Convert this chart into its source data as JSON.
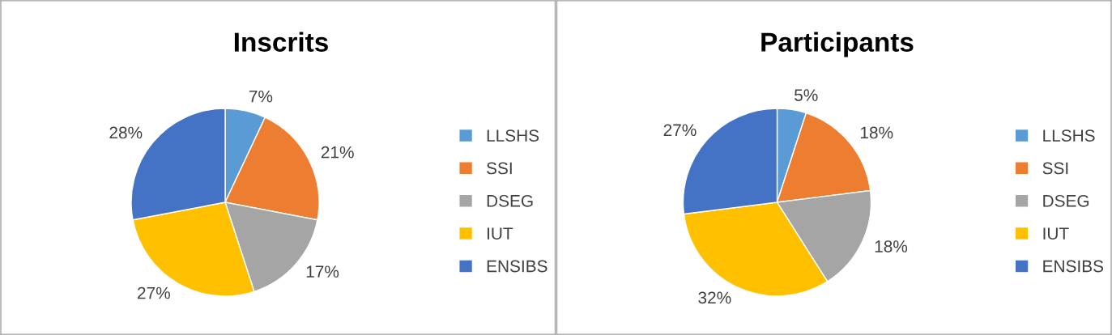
{
  "chart_data": [
    {
      "type": "pie",
      "title": "Inscrits",
      "categories": [
        "LLSHS",
        "SSI",
        "DSEG",
        "IUT",
        "ENSIBS"
      ],
      "values": [
        7,
        21,
        17,
        27,
        28
      ],
      "colors": [
        "#5b9bd5",
        "#ed7d31",
        "#a5a5a5",
        "#ffc000",
        "#4472c4"
      ],
      "value_labels": [
        "7%",
        "21%",
        "17%",
        "27%",
        "28%"
      ],
      "legend": "right"
    },
    {
      "type": "pie",
      "title": "Participants",
      "categories": [
        "LLSHS",
        "SSI",
        "DSEG",
        "IUT",
        "ENSIBS"
      ],
      "values": [
        5,
        18,
        18,
        32,
        27
      ],
      "colors": [
        "#5b9bd5",
        "#ed7d31",
        "#a5a5a5",
        "#ffc000",
        "#4472c4"
      ],
      "value_labels": [
        "5%",
        "18%",
        "18%",
        "32%",
        "27%"
      ],
      "legend": "right"
    }
  ]
}
